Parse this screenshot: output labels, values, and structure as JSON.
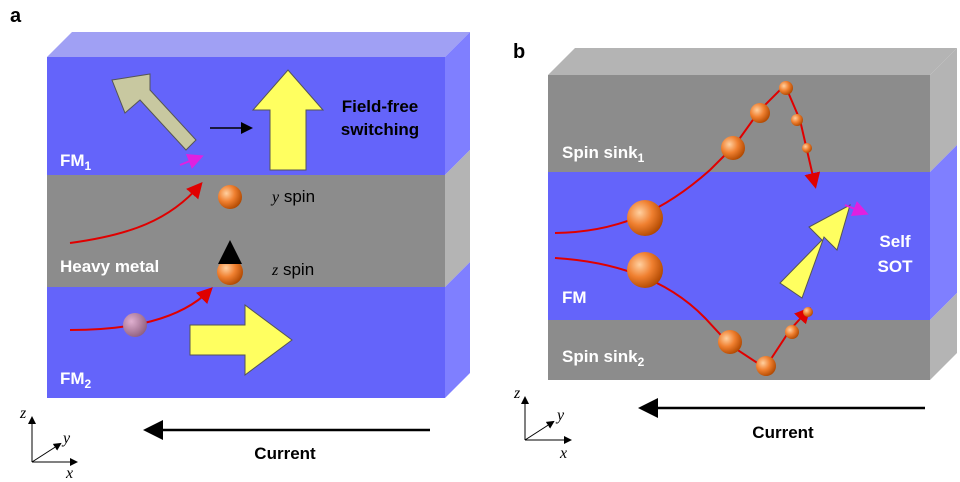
{
  "panels": [
    {
      "label": "a",
      "layers": [
        {
          "name": "FM",
          "subscript": "1"
        },
        {
          "name": "Heavy metal"
        },
        {
          "name": "FM",
          "subscript": "2"
        }
      ],
      "annotations": [
        "Field-free",
        "switching"
      ],
      "spins": [
        {
          "axis": "y",
          "label": "spin"
        },
        {
          "axis": "z",
          "label": "spin"
        }
      ],
      "current": "Current",
      "axes": [
        "z",
        "y",
        "x"
      ]
    },
    {
      "label": "b",
      "layers": [
        {
          "name": "Spin sink",
          "subscript": "1"
        },
        {
          "name": "FM"
        },
        {
          "name": "Spin sink",
          "subscript": "2"
        }
      ],
      "annotations": [
        "Self",
        "SOT"
      ],
      "current": "Current",
      "axes": [
        "z",
        "y",
        "x"
      ]
    }
  ]
}
